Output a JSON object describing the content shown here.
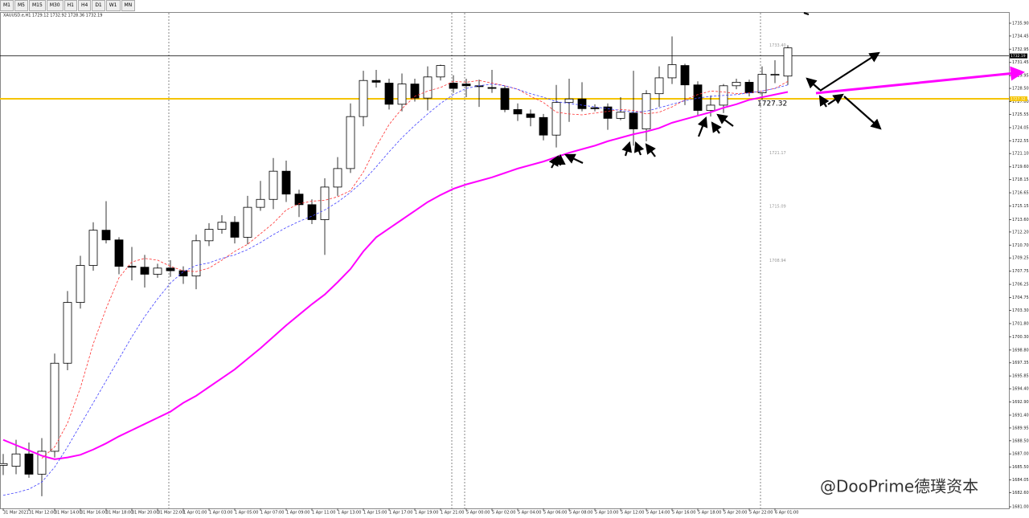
{
  "toolbar": [
    "M1",
    "M5",
    "M15",
    "M30",
    "H1",
    "H4",
    "D1",
    "W1",
    "MN"
  ],
  "watermark": "@DooPrime德璞资本",
  "chart_data": {
    "type": "candlestick",
    "title": "XAUUSD.e,H1 1729.12 1732.92 1728.36 1732.19",
    "categories": [
      "31 Mar 2021",
      null,
      "31 Mar 12:00",
      null,
      "31 Mar 14:00",
      null,
      "31 Mar 16:00",
      null,
      "31 Mar 18:00",
      null,
      "31 Mar 20:00",
      null,
      "31 Mar 22:00",
      null,
      "1 Apr 01:00",
      null,
      "1 Apr 03:00",
      null,
      "1 Apr 05:00",
      null,
      "1 Apr 07:00",
      null,
      "1 Apr 09:00",
      null,
      "1 Apr 11:00",
      null,
      "1 Apr 13:00",
      null,
      "1 Apr 15:00",
      null,
      "1 Apr 17:00",
      null,
      "1 Apr 19:00",
      null,
      "1 Apr 21:00",
      null,
      "5 Apr 00:00",
      null,
      "5 Apr 02:00",
      null,
      "5 Apr 04:00",
      null,
      "5 Apr 06:00",
      null,
      "5 Apr 08:00",
      null,
      "5 Apr 10:00",
      null,
      "5 Apr 12:00",
      null,
      "5 Apr 14:00",
      null,
      "5 Apr 16:00",
      null,
      "5 Apr 18:00",
      null,
      "5 Apr 20:00",
      null,
      "5 Apr 22:00",
      null,
      "6 Apr 01:00",
      null
    ],
    "open": [
      1685.7,
      1685.6,
      1687.0,
      1684.7,
      1687.3,
      1697.3,
      1704.2,
      1708.4,
      1712.4,
      1711.3,
      1708.3,
      1708.2,
      1707.4,
      1708.1,
      1707.8,
      1707.2,
      1711.2,
      1712.5,
      1713.3,
      1711.6,
      1715.0,
      1715.9,
      1719.1,
      1716.5,
      1715.3,
      1713.6,
      1717.3,
      1719.4,
      1725.3,
      1729.4,
      1729.1,
      1726.7,
      1729.0,
      1727.4,
      1729.8,
      1729.1,
      1729.0,
      1728.8,
      1728.6,
      1728.5,
      1726.1,
      1725.6,
      1725.2,
      1723.2,
      1726.9,
      1727.3,
      1726.3,
      1726.4,
      1725.1,
      1725.7,
      1723.9,
      1727.9,
      1729.7,
      1731.1,
      1728.9,
      1726.0,
      1726.6,
      1728.8,
      1729.2,
      1728.0,
      1730.0,
      1729.9
    ],
    "high": [
      1687.0,
      1688.6,
      1688.3,
      1688.8,
      1698.4,
      1705.5,
      1709.5,
      1713.3,
      1715.7,
      1711.6,
      1710.5,
      1709.6,
      1708.6,
      1709.0,
      1708.3,
      1711.9,
      1713.2,
      1714.1,
      1714.0,
      1716.3,
      1718.0,
      1720.6,
      1720.3,
      1717.0,
      1715.9,
      1718.3,
      1720.7,
      1726.8,
      1730.5,
      1730.6,
      1729.6,
      1730.2,
      1729.6,
      1731.0,
      1731.2,
      1730.0,
      1729.6,
      1729.5,
      1730.6,
      1728.8,
      1726.8,
      1726.1,
      1725.6,
      1728.9,
      1729.6,
      1729.2,
      1726.7,
      1726.8,
      1727.5,
      1730.5,
      1728.3,
      1731.0,
      1734.4,
      1731.3,
      1729.3,
      1727.7,
      1729.0,
      1729.6,
      1729.5,
      1731.0,
      1731.7,
      1733.4
    ],
    "low": [
      1684.6,
      1684.7,
      1684.3,
      1682.2,
      1686.6,
      1696.5,
      1703.5,
      1707.8,
      1710.9,
      1707.4,
      1706.7,
      1705.9,
      1707.0,
      1707.1,
      1706.3,
      1705.7,
      1710.6,
      1712.0,
      1710.9,
      1710.8,
      1714.6,
      1714.8,
      1715.6,
      1713.9,
      1713.1,
      1709.6,
      1716.3,
      1718.9,
      1724.2,
      1728.6,
      1726.1,
      1725.9,
      1727.0,
      1726.0,
      1729.4,
      1728.0,
      1727.5,
      1726.4,
      1728.0,
      1725.8,
      1724.8,
      1724.2,
      1722.6,
      1721.8,
      1724.7,
      1725.9,
      1725.9,
      1723.8,
      1724.9,
      1722.0,
      1722.5,
      1726.4,
      1729.0,
      1726.6,
      1725.5,
      1725.3,
      1725.7,
      1728.4,
      1727.6,
      1727.2,
      1729.1,
      1728.9
    ],
    "close": [
      1685.9,
      1687.0,
      1684.7,
      1687.3,
      1697.3,
      1704.2,
      1708.4,
      1712.4,
      1711.3,
      1708.3,
      1708.2,
      1707.4,
      1708.1,
      1707.8,
      1707.2,
      1711.2,
      1712.5,
      1713.3,
      1711.6,
      1715.0,
      1715.9,
      1719.1,
      1716.5,
      1715.3,
      1713.6,
      1717.3,
      1719.4,
      1725.3,
      1729.4,
      1729.2,
      1726.7,
      1729.0,
      1727.4,
      1729.8,
      1731.1,
      1728.5,
      1728.8,
      1728.7,
      1728.5,
      1726.1,
      1725.6,
      1725.2,
      1723.2,
      1726.9,
      1727.3,
      1726.2,
      1726.2,
      1725.1,
      1725.8,
      1723.9,
      1727.9,
      1729.7,
      1731.2,
      1728.9,
      1726.0,
      1726.6,
      1728.8,
      1729.2,
      1728.0,
      1730.1,
      1730.1,
      1733.1
    ],
    "lines": [
      {
        "color": "#ff00ff",
        "width": 2,
        "dash": false,
        "values": [
          1688.6,
          1688.0,
          1687.4,
          1686.8,
          1686.4,
          1686.6,
          1686.9,
          1687.5,
          1688.2,
          1689.0,
          1689.7,
          1690.4,
          1691.1,
          1691.8,
          1692.8,
          1693.6,
          1694.6,
          1695.6,
          1696.6,
          1697.8,
          1699.0,
          1700.3,
          1701.6,
          1702.8,
          1704.0,
          1705.1,
          1706.5,
          1708.0,
          1710.0,
          1711.6,
          1712.6,
          1713.6,
          1714.6,
          1715.6,
          1716.4,
          1717.1,
          1717.6,
          1718.0,
          1718.4,
          1718.9,
          1719.4,
          1719.8,
          1720.2,
          1720.7,
          1721.2,
          1721.6,
          1722.0,
          1722.5,
          1722.9,
          1723.3,
          1723.6,
          1724.0,
          1724.6,
          1725.0,
          1725.4,
          1725.8,
          1726.3,
          1726.7,
          1727.2,
          1727.5,
          1727.8,
          1728.1
        ]
      },
      {
        "color": "#ff3030",
        "width": 0.8,
        "dash": true,
        "values": [
          null,
          null,
          null,
          1686.5,
          1687.8,
          1690.5,
          1694.5,
          1699.5,
          1703.5,
          1707.0,
          1708.8,
          1709.2,
          1709.0,
          1708.3,
          1707.8,
          1707.7,
          1708.1,
          1709.0,
          1710.0,
          1710.8,
          1712.0,
          1713.2,
          1714.7,
          1715.4,
          1715.7,
          1715.8,
          1716.2,
          1716.9,
          1719.0,
          1721.9,
          1724.4,
          1726.2,
          1727.6,
          1728.2,
          1728.6,
          1729.3,
          1729.2,
          1729.4,
          1729.1,
          1728.8,
          1728.4,
          1727.6,
          1726.9,
          1725.8,
          1725.6,
          1725.5,
          1725.7,
          1725.9,
          1726.1,
          1726.0,
          1725.6,
          1725.8,
          1726.4,
          1727.2,
          1727.8,
          1728.2,
          1728.1,
          1727.9,
          1728.0,
          1728.2,
          1728.5,
          1729.3
        ]
      },
      {
        "color": "#4040ff",
        "width": 0.8,
        "dash": true,
        "values": [
          1682.3,
          1682.6,
          1683.0,
          1683.8,
          1685.5,
          1687.8,
          1690.3,
          1692.8,
          1695.3,
          1697.8,
          1700.3,
          1702.6,
          1704.6,
          1706.4,
          1707.7,
          1708.4,
          1708.7,
          1709.2,
          1709.6,
          1710.2,
          1711.0,
          1711.9,
          1712.7,
          1713.4,
          1714.0,
          1714.7,
          1715.6,
          1716.7,
          1718.0,
          1719.6,
          1721.3,
          1722.9,
          1724.3,
          1725.6,
          1726.8,
          1727.8,
          1728.5,
          1728.8,
          1729.0,
          1728.8,
          1728.4,
          1727.9,
          1727.5,
          1727.0,
          1726.8,
          1726.6,
          1726.4,
          1726.2,
          1726.0,
          1725.8,
          1725.9,
          1726.3,
          1726.7,
          1727.1,
          1727.4,
          1727.6,
          1727.7,
          1727.8,
          1728.0,
          1728.2,
          1728.5,
          1728.9
        ]
      }
    ],
    "levels": [
      {
        "value": 1727.32,
        "color": "#f5c400"
      },
      {
        "value": 1732.19,
        "color": "#000000"
      }
    ],
    "annotations": [
      {
        "value": 1733.4,
        "label": "1733.40"
      },
      1721.17,
      1715.09,
      1708.94
    ],
    "ylim": [
      1680.82,
      1737.17
    ],
    "yticks": [
      {
        "value": 1735.9,
        "label": "1735.90"
      },
      1734.45,
      1732.95,
      1731.45,
      1729.95,
      {
        "value": 1728.5,
        "label": "1728.50"
      },
      {
        "value": 1727,
        "label": "1727.00"
      },
      1725.55,
      1724.05,
      1722.55,
      {
        "value": 1721.1,
        "label": "1721.10"
      },
      {
        "value": 1719.6,
        "label": "1719.60"
      },
      1718.15,
      1716.65,
      1715.15,
      {
        "value": 1713.6,
        "label": "1713.60"
      },
      {
        "value": 1712.2,
        "label": "1712.20"
      },
      {
        "value": 1710.7,
        "label": "1710.70"
      },
      1709.25,
      1707.75,
      1706.25,
      1704.75,
      {
        "value": 1703.3,
        "label": "1703.30"
      },
      {
        "value": 1701.8,
        "label": "1701.80"
      },
      {
        "value": 1700.3,
        "label": "1700.30"
      },
      {
        "value": 1698.8,
        "label": "1698.80"
      },
      1697.35,
      1695.85,
      {
        "value": 1694.4,
        "label": "1694.40"
      },
      {
        "value": 1692.9,
        "label": "1692.90"
      },
      {
        "value": 1691.4,
        "label": "1691.40"
      },
      1689.95,
      {
        "value": 1688.5,
        "label": "1688.50"
      },
      {
        "value": 1687,
        "label": "1687.00"
      },
      {
        "value": 1685.5,
        "label": "1685.50"
      },
      1684.05,
      {
        "value": 1682.6,
        "label": "1682.60"
      },
      {
        "value": 1681,
        "label": "1681.00"
      }
    ]
  }
}
